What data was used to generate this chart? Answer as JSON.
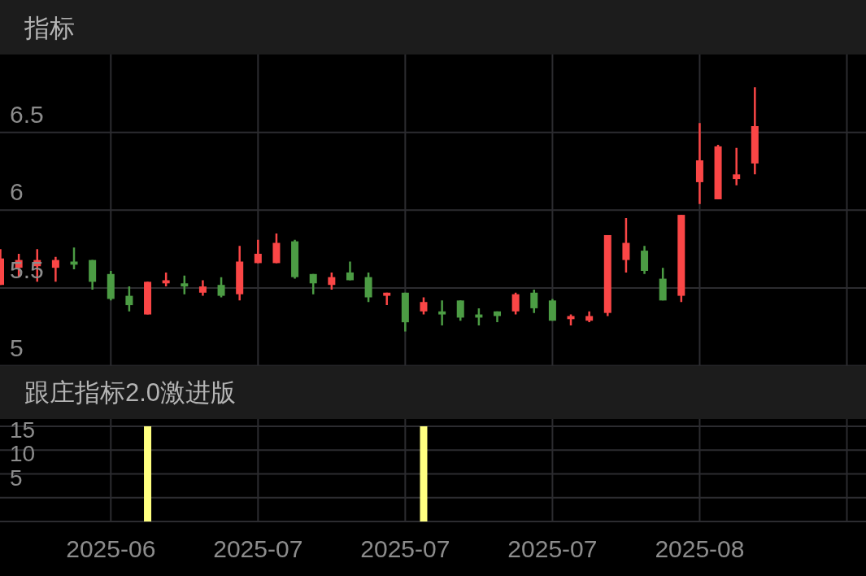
{
  "chart_data": [
    {
      "type": "candlestick",
      "title": "指标",
      "categories": [
        null,
        null,
        null,
        null,
        null,
        null,
        "2025-06",
        null,
        null,
        null,
        null,
        null,
        null,
        null,
        "2025-07",
        null,
        null,
        null,
        null,
        null,
        null,
        null,
        "2025-07",
        null,
        null,
        null,
        null,
        null,
        null,
        null,
        "2025-07",
        null,
        null,
        null,
        null,
        null,
        null,
        null,
        "2025-08",
        null,
        null,
        null,
        null,
        null,
        null,
        null,
        null
      ],
      "ohlc": [
        [
          5.52,
          5.75,
          5.52,
          5.69
        ],
        [
          5.63,
          5.72,
          5.57,
          5.68
        ],
        [
          5.64,
          5.75,
          5.54,
          5.68
        ],
        [
          5.63,
          5.7,
          5.54,
          5.68
        ],
        [
          5.67,
          5.76,
          5.62,
          5.65
        ],
        [
          5.68,
          5.68,
          5.49,
          5.54
        ],
        [
          5.59,
          5.61,
          5.42,
          5.43
        ],
        [
          5.45,
          5.51,
          5.35,
          5.39
        ],
        [
          5.33,
          5.54,
          5.33,
          5.54
        ],
        [
          5.53,
          5.6,
          5.51,
          5.55
        ],
        [
          5.53,
          5.58,
          5.46,
          5.51
        ],
        [
          5.47,
          5.55,
          5.45,
          5.51
        ],
        [
          5.52,
          5.57,
          5.44,
          5.45
        ],
        [
          5.46,
          5.77,
          5.42,
          5.67
        ],
        [
          5.66,
          5.81,
          5.66,
          5.72
        ],
        [
          5.66,
          5.85,
          5.66,
          5.79
        ],
        [
          5.8,
          5.81,
          5.56,
          5.57
        ],
        [
          5.59,
          5.59,
          5.46,
          5.53
        ],
        [
          5.52,
          5.6,
          5.49,
          5.57
        ],
        [
          5.6,
          5.67,
          5.55,
          5.55
        ],
        [
          5.57,
          5.6,
          5.41,
          5.44
        ],
        [
          5.45,
          5.47,
          5.39,
          5.47
        ],
        [
          5.47,
          5.47,
          5.22,
          5.28
        ],
        [
          5.35,
          5.44,
          5.33,
          5.41
        ],
        [
          5.35,
          5.42,
          5.26,
          5.33
        ],
        [
          5.42,
          5.42,
          5.29,
          5.31
        ],
        [
          5.33,
          5.37,
          5.26,
          5.31
        ],
        [
          5.35,
          5.35,
          5.28,
          5.32
        ],
        [
          5.35,
          5.47,
          5.33,
          5.46
        ],
        [
          5.47,
          5.49,
          5.34,
          5.37
        ],
        [
          5.42,
          5.43,
          5.29,
          5.29
        ],
        [
          5.3,
          5.33,
          5.26,
          5.32
        ],
        [
          5.29,
          5.35,
          5.28,
          5.32
        ],
        [
          5.34,
          5.84,
          5.32,
          5.84
        ],
        [
          5.68,
          5.95,
          5.6,
          5.79
        ],
        [
          5.74,
          5.77,
          5.59,
          5.61
        ],
        [
          5.56,
          5.63,
          5.42,
          5.42
        ],
        [
          5.45,
          5.97,
          5.41,
          5.97
        ],
        [
          6.18,
          6.56,
          6.04,
          6.32
        ],
        [
          6.07,
          6.42,
          6.07,
          6.41
        ],
        [
          6.2,
          6.4,
          6.16,
          6.23
        ],
        [
          6.3,
          6.79,
          6.23,
          6.54
        ],
        null,
        null,
        null,
        null,
        null
      ],
      "colors": [
        "#fa4646",
        "#fa4646",
        "#fa4646",
        "#fa4646",
        "#4c9c44",
        "#4c9c44",
        "#4c9c44",
        "#4c9c44",
        "#fa4646",
        "#fa4646",
        "#4c9c44",
        "#fa4646",
        "#4c9c44",
        "#fa4646",
        "#fa4646",
        "#fa4646",
        "#4c9c44",
        "#4c9c44",
        "#fa4646",
        "#4c9c44",
        "#4c9c44",
        "#fa4646",
        "#4c9c44",
        "#fa4646",
        "#4c9c44",
        "#4c9c44",
        "#4c9c44",
        "#4c9c44",
        "#fa4646",
        "#4c9c44",
        "#4c9c44",
        "#fa4646",
        "#fa4646",
        "#fa4646",
        "#fa4646",
        "#4c9c44",
        "#4c9c44",
        "#fa4646",
        "#fa4646",
        "#fa4646",
        "#fa4646",
        "#fa4646",
        null,
        null,
        null,
        null,
        null
      ],
      "ylim": [
        5,
        7
      ],
      "yticks": [
        5,
        5.5,
        6,
        6.5
      ],
      "grid": true,
      "tick_labels": "y"
    },
    {
      "type": "bar",
      "title": "跟庄指标2.0激进版",
      "categories": [
        null,
        null,
        null,
        null,
        null,
        null,
        "2025-06",
        null,
        null,
        null,
        null,
        null,
        null,
        null,
        "2025-07",
        null,
        null,
        null,
        null,
        null,
        null,
        null,
        "2025-07",
        null,
        null,
        null,
        null,
        null,
        null,
        null,
        "2025-07",
        null,
        null,
        null,
        null,
        null,
        null,
        null,
        "2025-08",
        null,
        null,
        null,
        null,
        null,
        null,
        null,
        null
      ],
      "values": [
        null,
        null,
        null,
        null,
        null,
        null,
        null,
        null,
        20,
        null,
        null,
        null,
        null,
        null,
        null,
        null,
        null,
        null,
        null,
        null,
        null,
        null,
        null,
        20,
        null,
        null,
        null,
        null,
        null,
        null,
        null,
        null,
        null,
        null,
        null,
        null,
        null,
        null,
        null,
        null,
        null,
        null,
        null,
        null,
        null,
        null,
        null
      ],
      "base": [
        null,
        null,
        null,
        null,
        null,
        null,
        null,
        null,
        -5,
        null,
        null,
        null,
        null,
        null,
        null,
        null,
        null,
        null,
        null,
        null,
        null,
        null,
        null,
        -5,
        null,
        null,
        null,
        null,
        null,
        null,
        null,
        null,
        null,
        null,
        null,
        null,
        null,
        null,
        null,
        null,
        null,
        null,
        null,
        null,
        null,
        null,
        null
      ],
      "color": "#ffff80",
      "ylim": [
        -5,
        15
      ],
      "yticks": [
        {
          "value": 0,
          "label": null
        },
        5,
        10,
        15
      ],
      "grid": true
    }
  ]
}
